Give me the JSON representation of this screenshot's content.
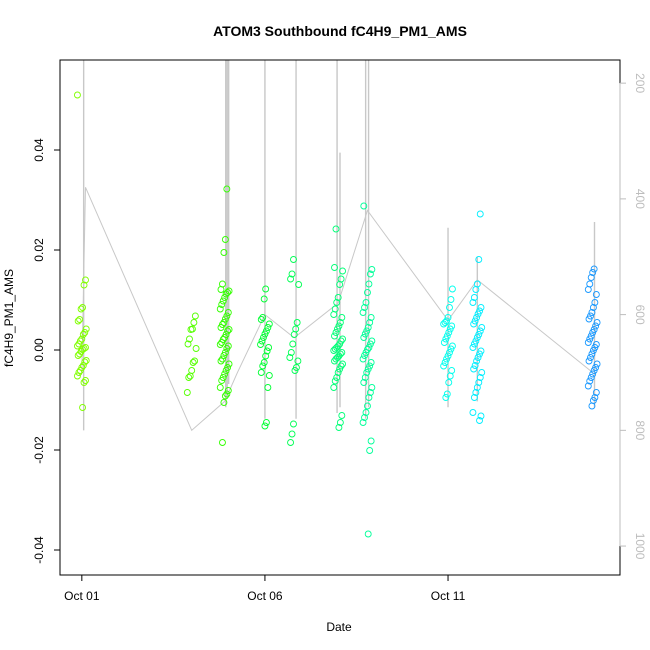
{
  "chart_data": {
    "type": "scatter",
    "title": "ATOM3 Southbound fC4H9_PM1_AMS",
    "xlabel": "Date",
    "ylabel": "fC4H9_PM1_AMS",
    "x_ticks": [
      "Oct 01",
      "Oct 06",
      "Oct 11"
    ],
    "y_ticks": [
      "-0.04",
      "-0.02",
      "0.00",
      "0.02",
      "0.04"
    ],
    "y2_ticks": [
      "200",
      "400",
      "600",
      "800",
      "1000"
    ],
    "xlim_days": [
      0.0,
      14.2
    ],
    "ylim": [
      -0.042,
      0.055
    ],
    "y2lim": [
      160,
      1050
    ],
    "y2_reversed": true,
    "grid": false,
    "legend": "none",
    "colors": {
      "axis": "#000000",
      "right_axis": "#bdbdbd",
      "altitude_trace": "#c8c8c8"
    },
    "clusters": [
      {
        "day": 0.05,
        "color": "#80ff00",
        "points": [
          0.051,
          0.014,
          0.013,
          0.0085,
          0.0082,
          0.0061,
          0.0058,
          0.0042,
          0.0035,
          0.0031,
          0.0022,
          0.0018,
          0.0012,
          0.0008,
          0.0005,
          0.0003,
          0.0001,
          -0.0003,
          -0.0008,
          -0.0011,
          -0.0021,
          -0.0024,
          -0.0031,
          -0.0035,
          -0.0041,
          -0.0045,
          -0.0052,
          -0.0061,
          -0.0065,
          -0.0115
        ]
      },
      {
        "day": 3.05,
        "color": "#55ff00",
        "points": [
          0.0068,
          0.0055,
          0.0042,
          0.0041,
          0.0022,
          0.0012,
          0.0003,
          -0.0022,
          -0.0025,
          -0.0041,
          -0.0052,
          -0.0055,
          -0.0085
        ]
      },
      {
        "day": 3.95,
        "color": "#33ff00",
        "points": [
          0.0322,
          0.0221,
          0.0195,
          0.0132,
          0.0121,
          0.0118,
          0.0115,
          0.0112,
          0.0105,
          0.0098,
          0.0091,
          0.0082,
          0.0075,
          0.0068,
          0.0062,
          0.0055,
          0.0051,
          0.0045,
          0.0041,
          0.0038,
          0.0031,
          0.0025,
          0.0021,
          0.0015,
          0.0011,
          0.0008,
          0.0003,
          -0.0005,
          -0.0011,
          -0.0018,
          -0.0022,
          -0.0028,
          -0.0035,
          -0.0041,
          -0.0048,
          -0.0055,
          -0.0061,
          -0.0075,
          -0.0081,
          -0.0088,
          -0.0092,
          -0.0105,
          -0.0185
        ]
      },
      {
        "day": 5.05,
        "color": "#00ff33",
        "points": [
          0.0122,
          0.0102,
          0.0065,
          0.0061,
          0.0052,
          0.0045,
          0.0038,
          0.0032,
          0.0025,
          0.0018,
          0.0011,
          0.0005,
          -0.0002,
          -0.0012,
          -0.0025,
          -0.0032,
          -0.0045,
          -0.0051,
          -0.0075,
          -0.0145,
          -0.0152
        ]
      },
      {
        "day": 5.85,
        "color": "#00ff55",
        "points": [
          0.0181,
          0.0152,
          0.0142,
          0.0131,
          0.0055,
          0.0042,
          0.0031,
          0.0012,
          -0.0005,
          -0.0015,
          -0.0022,
          -0.0035,
          -0.0041,
          -0.0148,
          -0.0168,
          -0.0185
        ]
      },
      {
        "day": 7.05,
        "color": "#00ff77",
        "points": [
          0.0242,
          0.0165,
          0.0158,
          0.0142,
          0.0131,
          0.0105,
          0.0095,
          0.0082,
          0.0071,
          0.0065,
          0.0055,
          0.0048,
          0.0042,
          0.0035,
          0.0028,
          0.0022,
          0.0018,
          0.0012,
          0.0008,
          0.0005,
          0.0002,
          -0.0001,
          -0.0005,
          -0.0008,
          -0.0012,
          -0.0015,
          -0.0018,
          -0.0022,
          -0.0028,
          -0.0032,
          -0.0038,
          -0.0045,
          -0.0055,
          -0.0062,
          -0.0075,
          -0.0131,
          -0.0145,
          -0.0155
        ]
      },
      {
        "day": 7.85,
        "color": "#00ff99",
        "points": [
          0.0288,
          0.0161,
          0.0152,
          0.0132,
          0.0115,
          0.0095,
          0.0085,
          0.0075,
          0.0065,
          0.0055,
          0.0045,
          0.0038,
          0.0032,
          0.0025,
          0.0018,
          0.0012,
          0.0005,
          0.0001,
          -0.0005,
          -0.0011,
          -0.0018,
          -0.0025,
          -0.0032,
          -0.0038,
          -0.0045,
          -0.0055,
          -0.0065,
          -0.0075,
          -0.0085,
          -0.0095,
          -0.0112,
          -0.0125,
          -0.0135,
          -0.0145,
          -0.0182,
          -0.0201,
          -0.0368
        ]
      },
      {
        "day": 10.05,
        "color": "#00ffee",
        "points": [
          0.0122,
          0.0101,
          0.0085,
          0.0065,
          0.0058,
          0.0055,
          0.0052,
          0.0048,
          0.0042,
          0.0035,
          0.0028,
          0.0022,
          0.0015,
          0.0008,
          0.0002,
          -0.0005,
          -0.0012,
          -0.0018,
          -0.0025,
          -0.0032,
          -0.0041,
          -0.0052,
          -0.0065,
          -0.0088,
          -0.0095
        ]
      },
      {
        "day": 10.85,
        "color": "#00eeff",
        "points": [
          0.0272,
          0.0181,
          0.0132,
          0.0121,
          0.0105,
          0.0095,
          0.0085,
          0.0078,
          0.0072,
          0.0065,
          0.0058,
          0.0052,
          0.0045,
          0.0038,
          0.0031,
          0.0025,
          0.0018,
          0.0012,
          0.0005,
          -0.0002,
          -0.0008,
          -0.0015,
          -0.0022,
          -0.0031,
          -0.0038,
          -0.0045,
          -0.0055,
          -0.0065,
          -0.0075,
          -0.0085,
          -0.0095,
          -0.0125,
          -0.0132,
          -0.0141
        ]
      },
      {
        "day": 14.0,
        "color": "#1a99ff",
        "points": [
          0.0162,
          0.0155,
          0.0145,
          0.0132,
          0.0121,
          0.0111,
          0.0095,
          0.0085,
          0.0075,
          0.0068,
          0.0062,
          0.0055,
          0.0048,
          0.0041,
          0.0035,
          0.0028,
          0.0022,
          0.0015,
          0.0011,
          0.0005,
          -0.0001,
          -0.0008,
          -0.0015,
          -0.0022,
          -0.0028,
          -0.0035,
          -0.0041,
          -0.0048,
          -0.0055,
          -0.0062,
          -0.0072,
          -0.0085,
          -0.0095,
          -0.0101,
          -0.0112
        ]
      }
    ],
    "altitude_line": {
      "days": [
        0.05,
        0.15,
        3.05,
        3.95,
        4.3,
        5.05,
        5.85,
        7.05,
        7.85,
        10.05,
        10.85,
        14.0
      ],
      "values": [
        700,
        380,
        800,
        750,
        700,
        600,
        640,
        580,
        420,
        610,
        540,
        700
      ]
    },
    "altitude_spikes": [
      {
        "day": 0.1,
        "low": 160,
        "high": 800
      },
      {
        "day": 3.98,
        "low": 160,
        "high": 760
      },
      {
        "day": 4.02,
        "low": 160,
        "high": 740
      },
      {
        "day": 4.06,
        "low": 160,
        "high": 720
      },
      {
        "day": 5.05,
        "low": 160,
        "high": 780
      },
      {
        "day": 5.9,
        "low": 160,
        "high": 780
      },
      {
        "day": 7.02,
        "low": 160,
        "high": 770
      },
      {
        "day": 7.1,
        "low": 320,
        "high": 760
      },
      {
        "day": 7.8,
        "low": 160,
        "high": 780
      },
      {
        "day": 7.88,
        "low": 160,
        "high": 760
      },
      {
        "day": 10.05,
        "low": 450,
        "high": 760
      },
      {
        "day": 10.85,
        "low": 500,
        "high": 750
      },
      {
        "day": 14.05,
        "low": 440,
        "high": 760
      }
    ]
  }
}
